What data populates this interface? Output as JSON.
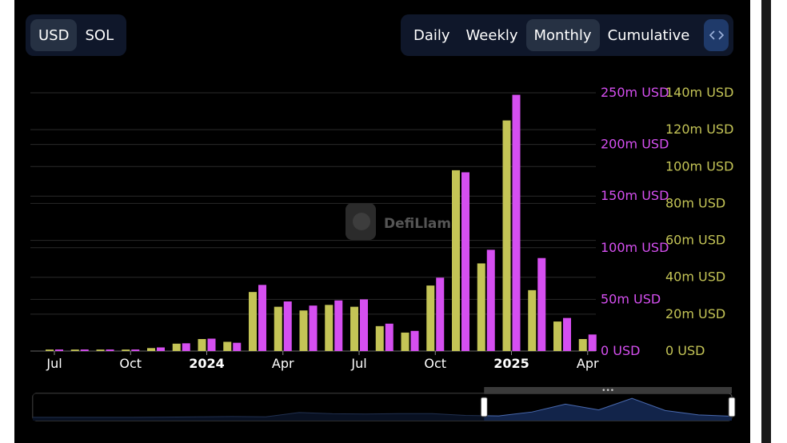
{
  "currency_toggle": {
    "options": [
      {
        "label": "USD",
        "active": true
      },
      {
        "label": "SOL",
        "active": false
      }
    ]
  },
  "interval_toggle": {
    "options": [
      {
        "label": "Daily",
        "active": false
      },
      {
        "label": "Weekly",
        "active": false
      },
      {
        "label": "Monthly",
        "active": true
      },
      {
        "label": "Cumulative",
        "active": false
      }
    ],
    "embed_icon": "code-icon"
  },
  "watermark": {
    "text": "DefiLlama"
  },
  "colors": {
    "series_a": "#c4c456",
    "series_b": "#d54ff0",
    "background": "#000000",
    "grid": "#2a2a2a"
  },
  "chart_data": {
    "type": "bar",
    "categories": [
      "2023-07",
      "2023-08",
      "2023-09",
      "2023-10",
      "2023-11",
      "2023-12",
      "2024-01",
      "2024-02",
      "2024-03",
      "2024-04",
      "2024-05",
      "2024-06",
      "2024-07",
      "2024-08",
      "2024-09",
      "2024-10",
      "2024-11",
      "2024-12",
      "2025-01",
      "2025-02",
      "2025-03",
      "2025-04"
    ],
    "x_tick_labels": [
      {
        "label": "Jul",
        "category": "2023-07",
        "bold": false
      },
      {
        "label": "Oct",
        "category": "2023-10",
        "bold": false
      },
      {
        "label": "2024",
        "category": "2024-01",
        "bold": true
      },
      {
        "label": "Apr",
        "category": "2024-04",
        "bold": false
      },
      {
        "label": "Jul",
        "category": "2024-07",
        "bold": false
      },
      {
        "label": "Oct",
        "category": "2024-10",
        "bold": false
      },
      {
        "label": "2025",
        "category": "2025-01",
        "bold": true
      },
      {
        "label": "Apr",
        "category": "2025-04",
        "bold": false
      }
    ],
    "series": [
      {
        "axis": "right",
        "color": "#c4c456",
        "values": [
          0.8,
          0.8,
          0.8,
          0.8,
          1.6,
          4,
          6.5,
          5,
          32,
          24,
          22,
          25,
          24,
          13.5,
          10,
          35.5,
          98,
          47.5,
          125,
          33,
          16,
          6.5
        ]
      },
      {
        "axis": "left",
        "color": "#d54ff0",
        "values": [
          1.5,
          1.5,
          1.5,
          1.5,
          3.5,
          7.5,
          12,
          8,
          64,
          48,
          44,
          49,
          50,
          26.5,
          19.5,
          71,
          173,
          98,
          248,
          90,
          32,
          16
        ]
      }
    ],
    "y_left": {
      "range": [
        0,
        250
      ],
      "ticks": [
        "0 USD",
        "50m USD",
        "100m USD",
        "150m USD",
        "200m USD",
        "250m USD"
      ]
    },
    "y_right": {
      "range": [
        0,
        140
      ],
      "ticks": [
        "0 USD",
        "20m USD",
        "40m USD",
        "60m USD",
        "80m USD",
        "100m USD",
        "120m USD",
        "140m USD"
      ]
    },
    "grid": true,
    "brush": {
      "window": [
        "2024-10",
        "2025-04"
      ]
    }
  }
}
